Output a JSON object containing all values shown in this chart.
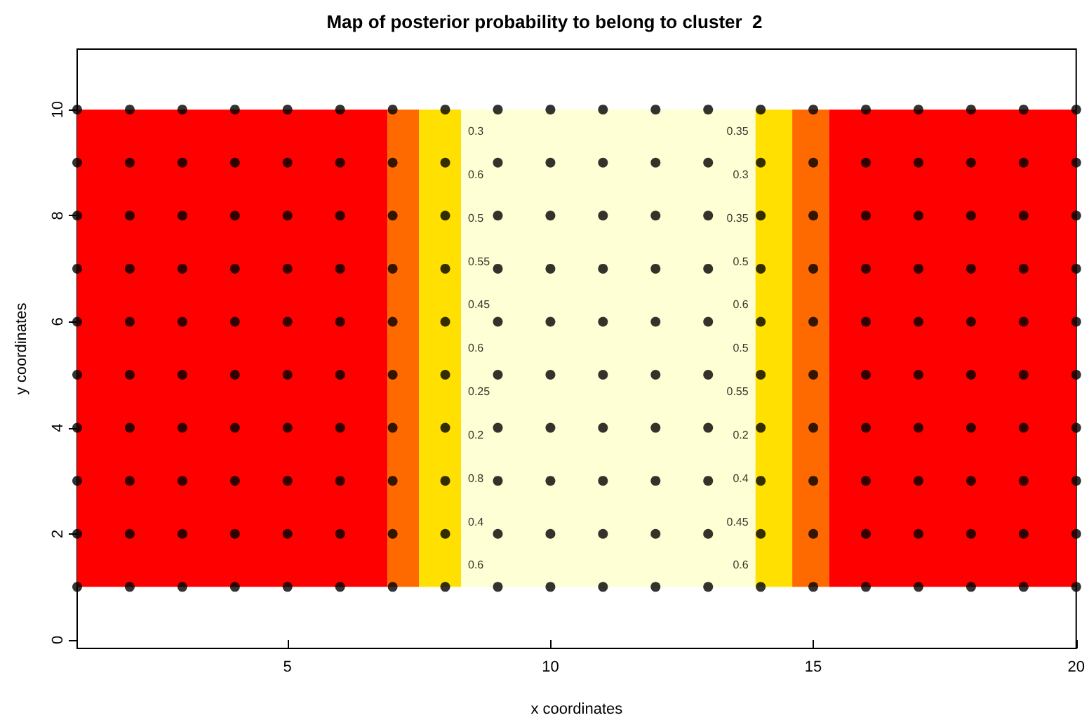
{
  "chart_data": {
    "type": "scatter",
    "title": "Map of posterior probability to belong to cluster  2",
    "xlabel": "x coordinates",
    "ylabel": "y coordinates",
    "x": [
      1,
      2,
      3,
      4,
      5,
      6,
      7,
      8,
      9,
      10,
      11,
      12,
      13,
      14,
      15,
      16,
      17,
      18,
      19,
      20
    ],
    "series": [
      {
        "color": "#000000",
        "values": [
          1,
          1,
          1,
          1,
          1,
          1,
          1,
          1,
          1,
          1,
          1,
          1,
          1,
          1,
          1,
          1,
          1,
          1,
          1,
          1
        ]
      },
      {
        "color": "#000000",
        "values": [
          2,
          2,
          2,
          2,
          2,
          2,
          2,
          2,
          2,
          2,
          2,
          2,
          2,
          2,
          2,
          2,
          2,
          2,
          2,
          2
        ]
      },
      {
        "color": "#000000",
        "values": [
          3,
          3,
          3,
          3,
          3,
          3,
          3,
          3,
          3,
          3,
          3,
          3,
          3,
          3,
          3,
          3,
          3,
          3,
          3,
          3
        ]
      },
      {
        "color": "#000000",
        "values": [
          4,
          4,
          4,
          4,
          4,
          4,
          4,
          4,
          4,
          4,
          4,
          4,
          4,
          4,
          4,
          4,
          4,
          4,
          4,
          4
        ]
      },
      {
        "color": "#000000",
        "values": [
          5,
          5,
          5,
          5,
          5,
          5,
          5,
          5,
          5,
          5,
          5,
          5,
          5,
          5,
          5,
          5,
          5,
          5,
          5,
          5
        ]
      },
      {
        "color": "#000000",
        "values": [
          6,
          6,
          6,
          6,
          6,
          6,
          6,
          6,
          6,
          6,
          6,
          6,
          6,
          6,
          6,
          6,
          6,
          6,
          6,
          6
        ]
      },
      {
        "color": "#000000",
        "values": [
          7,
          7,
          7,
          7,
          7,
          7,
          7,
          7,
          7,
          7,
          7,
          7,
          7,
          7,
          7,
          7,
          7,
          7,
          7,
          7
        ]
      },
      {
        "color": "#000000",
        "values": [
          8,
          8,
          8,
          8,
          8,
          8,
          8,
          8,
          8,
          8,
          8,
          8,
          8,
          8,
          8,
          8,
          8,
          8,
          8,
          8
        ]
      },
      {
        "color": "#000000",
        "values": [
          9,
          9,
          9,
          9,
          9,
          9,
          9,
          9,
          9,
          9,
          9,
          9,
          9,
          9,
          9,
          9,
          9,
          9,
          9,
          9
        ]
      },
      {
        "color": "#000000",
        "values": [
          10,
          10,
          10,
          10,
          10,
          10,
          10,
          10,
          10,
          10,
          10,
          10,
          10,
          10,
          10,
          10,
          10,
          10,
          10,
          10
        ]
      }
    ],
    "marker": "circle",
    "grid": false,
    "xlim": [
      1,
      20
    ],
    "xticks": [
      5,
      10,
      15,
      20
    ],
    "ylim": [
      -0.16,
      11.14
    ],
    "yticks": [
      0,
      2,
      4,
      6,
      8,
      10
    ],
    "bands": [
      {
        "axis": "x",
        "from": 1,
        "to": 6.9,
        "color": "#ff0000"
      },
      {
        "axis": "x",
        "from": 6.9,
        "to": 7.5,
        "color": "#ff6a00"
      },
      {
        "axis": "x",
        "from": 7.5,
        "to": 8.3,
        "color": "#ffe000"
      },
      {
        "axis": "x",
        "from": 8.3,
        "to": 13.9,
        "color": "#ffffd5"
      },
      {
        "axis": "x",
        "from": 13.9,
        "to": 14.6,
        "color": "#ffe000"
      },
      {
        "axis": "x",
        "from": 14.6,
        "to": 15.3,
        "color": "#ff6a00"
      },
      {
        "axis": "x",
        "from": 15.3,
        "to": 20,
        "color": "#ff0000"
      }
    ],
    "annotations": [
      "0.3",
      "0.6",
      "0.5",
      "0.55",
      "0.45",
      "0.6",
      "0.25",
      "0.2",
      "0.8",
      "0.4",
      "0.6",
      "0.35",
      "0.3",
      "0.35",
      "0.5",
      "0.6",
      "0.5",
      "0.55",
      "0.2",
      "0.4",
      "0.45",
      "0.6"
    ]
  }
}
